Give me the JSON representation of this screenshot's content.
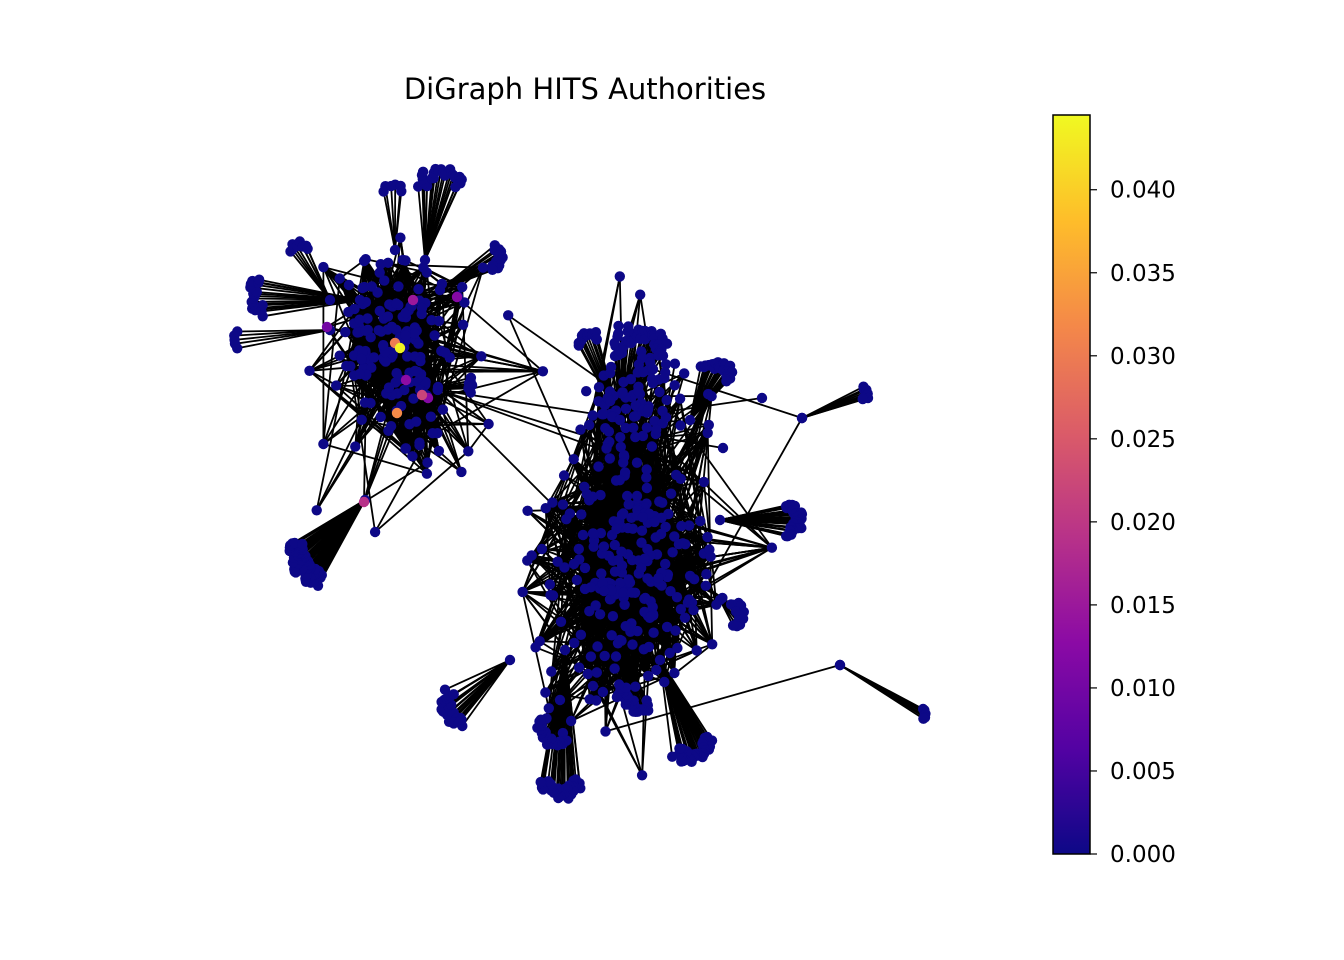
{
  "chart_data": {
    "type": "network",
    "title": "DiGraph HITS Authorities",
    "colormap": "plasma",
    "node_color": "#0d0887",
    "edge_color": "#000000",
    "colorbar": {
      "range": [
        0.0,
        0.0445
      ],
      "ticks": [
        0.0,
        0.005,
        0.01,
        0.015,
        0.02,
        0.025,
        0.03,
        0.035,
        0.04
      ],
      "tick_labels": [
        "0.000",
        "0.005",
        "0.010",
        "0.015",
        "0.020",
        "0.025",
        "0.030",
        "0.035",
        "0.040"
      ],
      "colors": [
        "#0d0887",
        "#5302a3",
        "#8b0aa5",
        "#b83289",
        "#db5c68",
        "#f48849",
        "#febd2a",
        "#f0f921"
      ]
    },
    "highlighted_nodes": [
      {
        "authority": 0.044
      },
      {
        "authority": 0.032
      },
      {
        "authority": 0.03
      },
      {
        "authority": 0.022
      },
      {
        "authority": 0.019
      },
      {
        "authority": 0.015
      },
      {
        "authority": 0.013
      },
      {
        "authority": 0.012
      },
      {
        "authority": 0.012
      },
      {
        "authority": 0.01
      }
    ],
    "components": 2,
    "default_authority": 0.0
  }
}
